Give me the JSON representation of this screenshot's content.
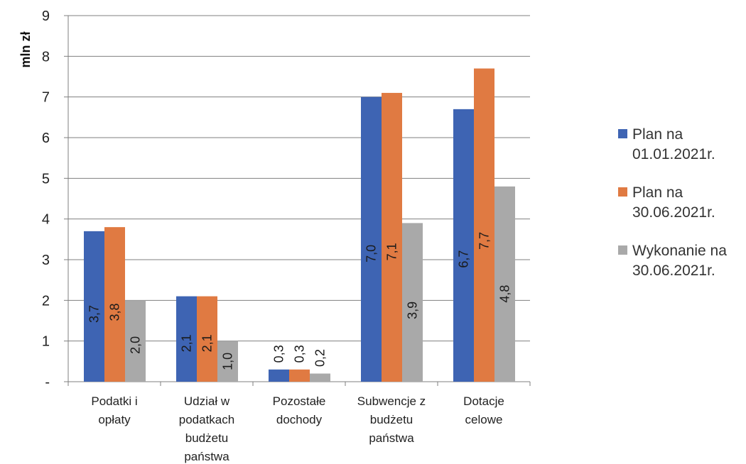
{
  "chart_data": {
    "type": "bar",
    "ylabel": "mln zł",
    "yticks": [
      "-",
      "1",
      "2",
      "3",
      "4",
      "5",
      "6",
      "7",
      "8",
      "9"
    ],
    "ylim": [
      0,
      9
    ],
    "grid": true,
    "legend_position": "right",
    "categories": [
      "Podatki i\nopłaty",
      "Udział w\npodatkach\nbudżetu\npaństwa",
      "Pozostałe\ndochody",
      "Subwencje z\nbudżetu\npaństwa",
      "Dotacje\ncelowe"
    ],
    "series": [
      {
        "name": "Plan na\n01.01.2021r.",
        "color": "#3e64b3",
        "values": [
          3.7,
          2.1,
          0.3,
          7.0,
          6.7
        ],
        "labels": [
          "3,7",
          "2,1",
          "0,3",
          "7,0",
          "6,7"
        ]
      },
      {
        "name": "Plan na\n30.06.2021r.",
        "color": "#e07a42",
        "values": [
          3.8,
          2.1,
          0.3,
          7.1,
          7.7
        ],
        "labels": [
          "3,8",
          "2,1",
          "0,3",
          "7,1",
          "7,7"
        ]
      },
      {
        "name": "Wykonanie na\n30.06.2021r.",
        "color": "#a9a9a9",
        "values": [
          2.0,
          1.0,
          0.2,
          3.9,
          4.8
        ],
        "labels": [
          "2,0",
          "1,0",
          "0,2",
          "3,9",
          "4,8"
        ]
      }
    ]
  }
}
